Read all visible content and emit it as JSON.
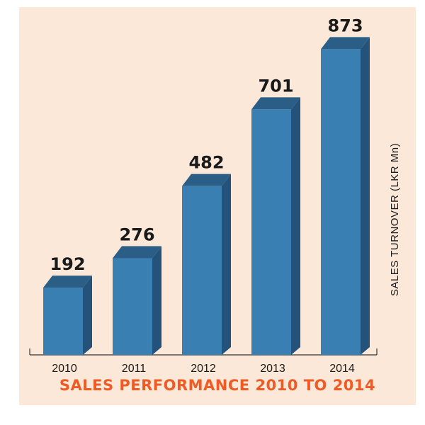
{
  "chart_data": {
    "type": "bar",
    "title": "SALES PERFORMANCE 2010 TO 2014",
    "xlabel": "",
    "ylabel": "SALES TURNOVER (LKR Mn)",
    "categories": [
      "2010",
      "2011",
      "2012",
      "2013",
      "2014"
    ],
    "values": [
      192,
      276,
      482,
      701,
      873
    ],
    "data_labels": [
      "192",
      "276",
      "482",
      "701",
      "873"
    ],
    "ylim": [
      0,
      900
    ],
    "grid": false,
    "style": "3d-bars",
    "colors": {
      "bar_front": "#3a7fb1",
      "bar_top": "#2a5e86",
      "bar_side": "#24527a",
      "title": "#f05a24",
      "background": "#fce8d9"
    }
  }
}
